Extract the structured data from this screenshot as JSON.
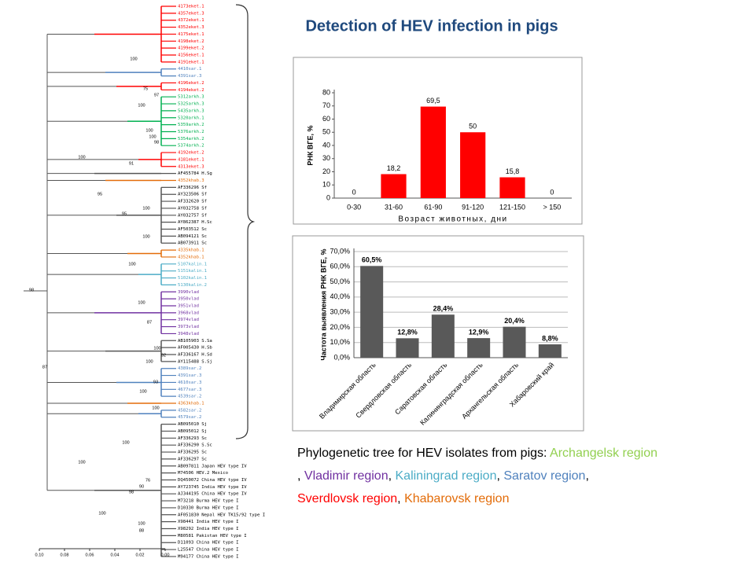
{
  "title": "Detection of HEV infection in pigs",
  "caption": [
    {
      "text": "Phylogenetic tree for HEV isolates from pigs: ",
      "color": "#000000"
    },
    {
      "text": "Archangelsk region",
      "color": "#92d050"
    },
    {
      "text": ", ",
      "color": "#000000"
    },
    {
      "text": "Vladimir region",
      "color": "#7030a0"
    },
    {
      "text": ", ",
      "color": "#000000"
    },
    {
      "text": "Kaliningrad region",
      "color": "#4bacc6"
    },
    {
      "text": ", ",
      "color": "#000000"
    },
    {
      "text": "Saratov region",
      "color": "#4f81bd"
    },
    {
      "text": ",",
      "color": "#000000"
    },
    {
      "text": "Sverdlovsk region",
      "color": "#ff0000"
    },
    {
      "text": ", ",
      "color": "#000000"
    },
    {
      "text": "Khabarovsk region",
      "color": "#e36c09"
    }
  ],
  "tree": {
    "leaves": [
      {
        "label": "4173eket.1",
        "color": "#ff0000"
      },
      {
        "label": "4357eket.3",
        "color": "#ff0000"
      },
      {
        "label": "4372eket.1",
        "color": "#ff0000"
      },
      {
        "label": "4352eket.3",
        "color": "#ff0000"
      },
      {
        "label": "4175eket.1",
        "color": "#ff0000"
      },
      {
        "label": "4198eket.2",
        "color": "#ff0000"
      },
      {
        "label": "4199eket.2",
        "color": "#ff0000"
      },
      {
        "label": "4156eket.1",
        "color": "#ff0000"
      },
      {
        "label": "4191eket.1",
        "color": "#ff0000"
      },
      {
        "label": "4410sar.1",
        "color": "#4f81bd"
      },
      {
        "label": "4391sar.3",
        "color": "#4f81bd"
      },
      {
        "label": "4196eket.2",
        "color": "#ff0000"
      },
      {
        "label": "4194eket.2",
        "color": "#ff0000"
      },
      {
        "label": "5312arkh.3",
        "color": "#00b050"
      },
      {
        "label": "5325arkh.3",
        "color": "#00b050"
      },
      {
        "label": "5435arkh.3",
        "color": "#00b050"
      },
      {
        "label": "5320arkh.1",
        "color": "#00b050"
      },
      {
        "label": "5359arkh.2",
        "color": "#00b050"
      },
      {
        "label": "5376arkh.2",
        "color": "#00b050"
      },
      {
        "label": "5354arkh.2",
        "color": "#00b050"
      },
      {
        "label": "5374arkh.2",
        "color": "#00b050"
      },
      {
        "label": "4192eket.2",
        "color": "#ff0000"
      },
      {
        "label": "4181eket.1",
        "color": "#ff0000"
      },
      {
        "label": "4313eket.3",
        "color": "#ff0000"
      },
      {
        "label": "AF455784 H.Sg",
        "color": "#000000"
      },
      {
        "label": "4352khab.3",
        "color": "#e36c09"
      },
      {
        "label": "AF336296 Sf",
        "color": "#000000"
      },
      {
        "label": "AY323506 Sf",
        "color": "#000000"
      },
      {
        "label": "AF332620 Sf",
        "color": "#000000"
      },
      {
        "label": "AY032758 Sf",
        "color": "#000000"
      },
      {
        "label": "AY032757 Sf",
        "color": "#000000"
      },
      {
        "label": "AY862387 H.Sc",
        "color": "#000000"
      },
      {
        "label": "AF503512 Sc",
        "color": "#000000"
      },
      {
        "label": "AB094121 Sc",
        "color": "#000000"
      },
      {
        "label": "AB073911 Sc",
        "color": "#000000"
      },
      {
        "label": "4335khab.1",
        "color": "#e36c09"
      },
      {
        "label": "4352khab.1",
        "color": "#e36c09"
      },
      {
        "label": "5107kalin.1",
        "color": "#4bacc6"
      },
      {
        "label": "5151kalin.1",
        "color": "#4bacc6"
      },
      {
        "label": "5102kalin.1",
        "color": "#4bacc6"
      },
      {
        "label": "5130kalin.2",
        "color": "#4bacc6"
      },
      {
        "label": "3990vlad",
        "color": "#7030a0"
      },
      {
        "label": "3950vlad",
        "color": "#7030a0"
      },
      {
        "label": "3951vlad",
        "color": "#7030a0"
      },
      {
        "label": "3968vlad",
        "color": "#7030a0"
      },
      {
        "label": "3974vlad",
        "color": "#7030a0"
      },
      {
        "label": "3973vlad",
        "color": "#7030a0"
      },
      {
        "label": "3948vlad",
        "color": "#7030a0"
      },
      {
        "label": "AB105903 S.Sa",
        "color": "#000000"
      },
      {
        "label": "AF005430 H.Sb",
        "color": "#000000"
      },
      {
        "label": "AF336167 H.Sd",
        "color": "#000000"
      },
      {
        "label": "AY115488 S.Sj",
        "color": "#000000"
      },
      {
        "label": "4389sar.2",
        "color": "#4f81bd"
      },
      {
        "label": "4391sar.3",
        "color": "#4f81bd"
      },
      {
        "label": "4610sar.3",
        "color": "#4f81bd"
      },
      {
        "label": "4677sar.3",
        "color": "#4f81bd"
      },
      {
        "label": "4539sar.2",
        "color": "#4f81bd"
      },
      {
        "label": "4363khab.1",
        "color": "#e36c09"
      },
      {
        "label": "4582sar.2",
        "color": "#4f81bd"
      },
      {
        "label": "4579sar.2",
        "color": "#4f81bd"
      },
      {
        "label": "AB095010 Sj",
        "color": "#000000"
      },
      {
        "label": "AB095012 Sj",
        "color": "#000000"
      },
      {
        "label": "AF336293 Sc",
        "color": "#000000"
      },
      {
        "label": "AF336290 S.Sc",
        "color": "#000000"
      },
      {
        "label": "AF336295 Sc",
        "color": "#000000"
      },
      {
        "label": "AF336297 Sc",
        "color": "#000000"
      },
      {
        "label": "AB097811 Japan HEV type IV",
        "color": "#000000"
      },
      {
        "label": "M74506 HEV.2 Mexico",
        "color": "#000000"
      },
      {
        "label": "DQ450072 China HEV type IV",
        "color": "#000000"
      },
      {
        "label": "AY723745 India HEV type IV",
        "color": "#000000"
      },
      {
        "label": "AJ344195 China HEV type IV",
        "color": "#000000"
      },
      {
        "label": "M73218 Burma HEV type I",
        "color": "#000000"
      },
      {
        "label": "D10330 Burma HEV type I",
        "color": "#000000"
      },
      {
        "label": "AF051830 Nepal HEV TK15/92 type I",
        "color": "#000000"
      },
      {
        "label": "X98441 India HEV type I",
        "color": "#000000"
      },
      {
        "label": "X98292 India HEV type I",
        "color": "#000000"
      },
      {
        "label": "M80581 Pakistan HEV type I",
        "color": "#000000"
      },
      {
        "label": "D11093 China HEV type I",
        "color": "#000000"
      },
      {
        "label": "L25547 China HEV type I",
        "color": "#000000"
      },
      {
        "label": "M94177 China HEV type I",
        "color": "#000000"
      }
    ],
    "bootstrap": [
      100,
      75,
      97,
      100,
      100,
      100,
      98,
      100,
      91,
      95,
      100,
      95,
      100,
      100,
      98,
      100,
      87,
      100,
      92,
      100,
      87,
      93,
      100,
      100,
      100,
      100,
      76,
      90,
      98,
      100,
      100,
      88
    ],
    "scale_ticks": [
      {
        "value": 0.1,
        "label": "0.10"
      },
      0.08,
      0.06,
      0.04,
      0.02,
      {
        "value": 0,
        "label": "0.00"
      }
    ]
  },
  "chart_data": [
    {
      "type": "bar",
      "categories": [
        "0-30",
        "31-60",
        "61-90",
        "91-120",
        "121-150",
        "> 150"
      ],
      "values": [
        0,
        18.2,
        69.5,
        50,
        15.8,
        0
      ],
      "value_labels": [
        "0",
        "18,2",
        "69,5",
        "50",
        "15,8",
        "0"
      ],
      "color": "#ff0000",
      "ylim": [
        0,
        80
      ],
      "yticks": [
        0,
        10,
        20,
        30,
        40,
        50,
        60,
        70,
        80
      ],
      "y_label": "РНК ВГЕ, %",
      "x_label": "Возраст животных, дни"
    },
    {
      "type": "bar",
      "categories": [
        "Владимирская область",
        "Свердловская область",
        "Саратовская область",
        "Калининградская область",
        "Архангельская область",
        "Хабаровский край"
      ],
      "values": [
        60.5,
        12.8,
        28.4,
        12.9,
        20.4,
        8.8
      ],
      "value_labels": [
        "60,5%",
        "12,8%",
        "28,4%",
        "12,9%",
        "20,4%",
        "8,8%"
      ],
      "color": "#595959",
      "ylim": [
        0,
        70
      ],
      "yticks": [
        {
          "value": 0,
          "label": "0,0%"
        },
        {
          "value": 10,
          "label": "10,0%"
        },
        {
          "value": 20,
          "label": "20,0%"
        },
        {
          "value": 30,
          "label": "30,0%"
        },
        {
          "value": 40,
          "label": "40,0%"
        },
        {
          "value": 50,
          "label": "50,0%"
        },
        {
          "value": 60,
          "label": "60,0%"
        },
        {
          "value": 70,
          "label": "70,0%"
        }
      ],
      "y_label": "Частота выявления РНК ВГЕ, %",
      "grid": true
    }
  ]
}
